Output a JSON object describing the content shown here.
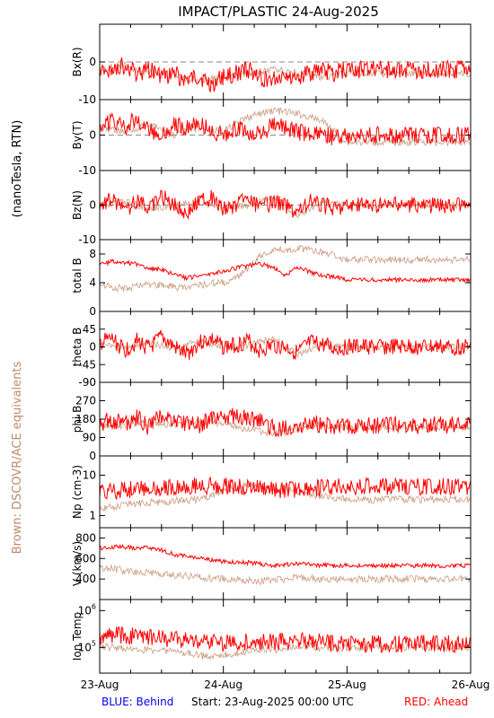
{
  "title": "IMPACT/PLASTIC   24-Aug-2025",
  "left_label_top": "(nanoTesla, RTN)",
  "left_label_bottom": "Brown: DSCOVR/ACE equivalents",
  "footer": {
    "behind": "BLUE: Behind",
    "start": "Start: 23-Aug-2025 00:00 UTC",
    "ahead": "RED: Ahead"
  },
  "colors": {
    "ahead": "#ff0000",
    "ace": "#c08a6a",
    "behind": "#0000ff",
    "axis": "#000000"
  },
  "chart_data": [
    {
      "type": "scatter",
      "panel": "Bx",
      "ylabel": "Bx(R)",
      "ylim": [
        -10,
        10
      ],
      "yticks": [
        {
          "v": 0,
          "label": "0"
        },
        {
          "v": -10,
          "label": "-10"
        }
      ],
      "zero_line": true,
      "series": [
        {
          "name": "Ahead",
          "x": [
            0,
            0.1,
            0.2,
            0.3,
            0.4,
            0.5,
            0.6,
            0.7,
            0.8,
            0.9,
            1,
            1.1,
            1.2,
            1.3,
            1.4,
            1.5,
            1.6,
            1.7,
            1.8,
            1.9,
            2
          ],
          "values": [
            -3,
            -2,
            -1,
            -3,
            -2,
            -4,
            -3,
            -5,
            -4,
            -6,
            -4,
            -3,
            -2,
            -4,
            -5,
            -3,
            -4,
            -3,
            -2,
            -3,
            -2
          ]
        },
        {
          "name": "ACE",
          "x": [
            0,
            0.2,
            0.4,
            0.6,
            0.8,
            1,
            1.2,
            1.4,
            1.6,
            1.8,
            2
          ],
          "values": [
            -2,
            -1,
            -3,
            -4,
            -5,
            -4,
            -3,
            -2,
            -3,
            -4,
            -3
          ]
        }
      ]
    },
    {
      "type": "scatter",
      "panel": "By",
      "ylabel": "By(T)",
      "ylim": [
        -10,
        10
      ],
      "yticks": [
        {
          "v": 0,
          "label": "0"
        },
        {
          "v": -10,
          "label": "-10"
        }
      ],
      "zero_line": true,
      "series": [
        {
          "name": "Ahead",
          "x": [
            0,
            0.1,
            0.2,
            0.3,
            0.4,
            0.5,
            0.6,
            0.7,
            0.8,
            0.9,
            1,
            1.1,
            1.2,
            1.3,
            1.4,
            1.5,
            1.6,
            1.7,
            1.8,
            1.9,
            2
          ],
          "values": [
            3,
            4,
            2,
            5,
            1,
            0,
            3,
            2,
            4,
            1,
            0,
            2,
            1,
            0,
            3,
            2,
            1,
            0,
            1,
            -1,
            0
          ]
        },
        {
          "name": "ACE",
          "x": [
            0,
            0.2,
            0.4,
            0.6,
            0.8,
            1,
            1.2,
            1.4,
            1.6,
            1.8,
            2
          ],
          "values": [
            2,
            1,
            3,
            0,
            2,
            1,
            5,
            7,
            6,
            4,
            -2
          ]
        }
      ]
    },
    {
      "type": "scatter",
      "panel": "Bz",
      "ylabel": "Bz(N)",
      "ylim": [
        -10,
        10
      ],
      "yticks": [
        {
          "v": 0,
          "label": "0"
        },
        {
          "v": -10,
          "label": "-10"
        }
      ],
      "zero_line": true,
      "series": [
        {
          "name": "Ahead",
          "x": [
            0,
            0.1,
            0.2,
            0.3,
            0.4,
            0.5,
            0.6,
            0.7,
            0.8,
            0.9,
            1,
            1.1,
            1.2,
            1.3,
            1.4,
            1.5,
            1.6,
            1.7,
            1.8,
            1.9,
            2
          ],
          "values": [
            0,
            2,
            -2,
            1,
            -1,
            3,
            0,
            -2,
            1,
            2,
            -1,
            0,
            2,
            -1,
            1,
            0,
            -2,
            1,
            0,
            -1,
            0
          ]
        },
        {
          "name": "ACE",
          "x": [
            0,
            0.2,
            0.4,
            0.6,
            0.8,
            1,
            1.2,
            1.4,
            1.6,
            1.8,
            2
          ],
          "values": [
            0,
            1,
            -1,
            0,
            1,
            -1,
            0,
            2,
            -3,
            1,
            0
          ]
        }
      ]
    },
    {
      "type": "line",
      "panel": "total B",
      "ylabel": "total B",
      "ylim": [
        0,
        10
      ],
      "yticks": [
        {
          "v": 8,
          "label": "8"
        },
        {
          "v": 4,
          "label": "4"
        },
        {
          "v": 0,
          "label": "0"
        }
      ],
      "series": [
        {
          "name": "Ahead",
          "x": [
            0,
            0.1,
            0.2,
            0.3,
            0.4,
            0.5,
            0.6,
            0.7,
            0.8,
            0.9,
            1,
            1.1,
            1.2,
            1.3,
            1.4,
            1.5,
            1.6,
            1.7,
            1.8,
            1.9,
            2
          ],
          "values": [
            6.5,
            7,
            6.8,
            6.6,
            6,
            5.8,
            5.2,
            4.6,
            5,
            5.3,
            5.6,
            6,
            6.4,
            6.6,
            6.2,
            5,
            6.2,
            5.5,
            5,
            4.8,
            4.4
          ]
        },
        {
          "name": "ACE",
          "x": [
            0,
            0.1,
            0.2,
            0.3,
            0.4,
            0.5,
            0.6,
            0.7,
            0.8,
            0.9,
            1,
            1.1,
            1.2,
            1.3,
            1.4,
            1.5,
            1.6,
            1.7,
            1.8,
            1.9,
            2
          ],
          "values": [
            3.8,
            3.4,
            3.2,
            3.5,
            3.8,
            3.6,
            3.4,
            3.3,
            3.6,
            3.9,
            4,
            4.5,
            6,
            7.8,
            8.6,
            8.6,
            8.8,
            8.6,
            8.2,
            7.8,
            7.2
          ]
        }
      ]
    },
    {
      "type": "scatter",
      "panel": "theta B",
      "ylabel": "theta B",
      "ylim": [
        -90,
        90
      ],
      "yticks": [
        {
          "v": 45,
          "label": "45"
        },
        {
          "v": 0,
          "label": "0"
        },
        {
          "v": -45,
          "label": "-45"
        },
        {
          "v": -90,
          "label": "-90"
        }
      ],
      "series": [
        {
          "name": "Ahead",
          "x": [
            0,
            0.1,
            0.2,
            0.3,
            0.4,
            0.5,
            0.6,
            0.7,
            0.8,
            0.9,
            1,
            1.1,
            1.2,
            1.3,
            1.4,
            1.5,
            1.6,
            1.7,
            1.8,
            1.9,
            2
          ],
          "values": [
            10,
            20,
            -10,
            15,
            -5,
            25,
            0,
            -20,
            10,
            20,
            0,
            5,
            15,
            -10,
            5,
            0,
            -15,
            10,
            5,
            -5,
            0
          ]
        },
        {
          "name": "ACE",
          "x": [
            0,
            0.2,
            0.4,
            0.6,
            0.8,
            1,
            1.2,
            1.4,
            1.6,
            1.8,
            2
          ],
          "values": [
            5,
            0,
            10,
            -5,
            15,
            0,
            5,
            20,
            -20,
            10,
            0
          ]
        }
      ]
    },
    {
      "type": "scatter",
      "panel": "phi B",
      "ylabel": "phi B",
      "ylim": [
        0,
        360
      ],
      "yticks": [
        {
          "v": 270,
          "label": "270"
        },
        {
          "v": 180,
          "label": "180"
        },
        {
          "v": 90,
          "label": "90"
        },
        {
          "v": 0,
          "label": "0"
        }
      ],
      "series": [
        {
          "name": "Ahead",
          "x": [
            0,
            0.1,
            0.2,
            0.3,
            0.4,
            0.5,
            0.6,
            0.7,
            0.8,
            0.9,
            1,
            1.1,
            1.2,
            1.3,
            1.4,
            1.5,
            1.6,
            1.7,
            1.8,
            1.9,
            2
          ],
          "values": [
            150,
            180,
            160,
            190,
            140,
            200,
            170,
            160,
            150,
            180,
            190,
            200,
            180,
            170,
            140,
            130,
            150,
            160,
            150,
            140,
            150
          ]
        },
        {
          "name": "ACE",
          "x": [
            0,
            0.2,
            0.4,
            0.6,
            0.8,
            1,
            1.2,
            1.4,
            1.6,
            1.8,
            2
          ],
          "values": [
            140,
            150,
            160,
            150,
            170,
            160,
            130,
            110,
            130,
            150,
            140
          ]
        }
      ]
    },
    {
      "type": "scatter",
      "panel": "Np",
      "ylabel": "Np (cm-3)",
      "yscale": "log",
      "ylim": [
        0.5,
        30
      ],
      "yticks": [
        {
          "v": 10,
          "label": "10"
        },
        {
          "v": 1,
          "label": "1"
        }
      ],
      "series": [
        {
          "name": "Ahead",
          "x": [
            0,
            0.1,
            0.2,
            0.3,
            0.4,
            0.5,
            0.6,
            0.7,
            0.8,
            0.9,
            1,
            1.1,
            1.2,
            1.3,
            1.4,
            1.5,
            1.6,
            1.7,
            1.8,
            1.9,
            2
          ],
          "values": [
            3.8,
            4,
            4.2,
            4.5,
            4.8,
            5,
            5,
            5.2,
            5.4,
            5.6,
            5.4,
            5,
            4.8,
            4.6,
            4.4,
            4.2,
            4.4,
            4.6,
            4.8,
            5,
            5.2
          ]
        },
        {
          "name": "ACE",
          "x": [
            0,
            0.1,
            0.2,
            0.3,
            0.4,
            0.5,
            0.6,
            0.7,
            0.8,
            0.9,
            1,
            1.1,
            1.2,
            1.3,
            1.4,
            1.5,
            1.6,
            1.7,
            1.8,
            1.9,
            2
          ],
          "values": [
            1.5,
            1.6,
            1.8,
            2,
            2.1,
            2.2,
            2.3,
            2.4,
            2.6,
            3,
            4,
            5,
            6,
            5,
            4,
            4.5,
            4,
            3.5,
            3,
            2.8,
            2.5
          ]
        }
      ]
    },
    {
      "type": "line",
      "panel": "V",
      "ylabel": "V (km/s)",
      "ylim": [
        200,
        900
      ],
      "yticks": [
        {
          "v": 800,
          "label": "800"
        },
        {
          "v": 600,
          "label": "600"
        },
        {
          "v": 400,
          "label": "400"
        }
      ],
      "series": [
        {
          "name": "Ahead",
          "x": [
            0,
            0.1,
            0.2,
            0.3,
            0.4,
            0.5,
            0.6,
            0.7,
            0.8,
            0.9,
            1,
            1.1,
            1.2,
            1.3,
            1.4,
            1.5,
            1.6,
            1.7,
            1.8,
            1.9,
            2
          ],
          "values": [
            700,
            710,
            715,
            700,
            705,
            680,
            640,
            620,
            600,
            585,
            570,
            565,
            560,
            545,
            530,
            540,
            550,
            540,
            535,
            530,
            530
          ]
        },
        {
          "name": "ACE",
          "x": [
            0,
            0.1,
            0.2,
            0.3,
            0.4,
            0.5,
            0.6,
            0.7,
            0.8,
            0.9,
            1,
            1.1,
            1.2,
            1.3,
            1.4,
            1.5,
            1.6,
            1.7,
            1.8,
            1.9,
            2
          ],
          "values": [
            510,
            500,
            480,
            470,
            460,
            450,
            440,
            430,
            420,
            410,
            400,
            395,
            390,
            380,
            395,
            400,
            420,
            410,
            400,
            395,
            400
          ]
        }
      ]
    },
    {
      "type": "scatter",
      "panel": "Ion Temp",
      "ylabel": "Ion Temp",
      "yscale": "log",
      "ylim": [
        20000,
        2000000
      ],
      "yticks": [
        {
          "v": 1000000,
          "label": "10^6"
        },
        {
          "v": 100000,
          "label": "10^5"
        }
      ],
      "series": [
        {
          "name": "Ahead",
          "x": [
            0,
            0.1,
            0.2,
            0.3,
            0.4,
            0.5,
            0.6,
            0.7,
            0.8,
            0.9,
            1,
            1.1,
            1.2,
            1.3,
            1.4,
            1.5,
            1.6,
            1.7,
            1.8,
            1.9,
            2
          ],
          "values": [
            200000,
            220000,
            210000,
            200000,
            190000,
            180000,
            170000,
            160000,
            150000,
            140000,
            130000,
            140000,
            145000,
            150000,
            140000,
            145000,
            150000,
            140000,
            135000,
            130000,
            125000
          ]
        },
        {
          "name": "ACE",
          "x": [
            0,
            0.1,
            0.2,
            0.3,
            0.4,
            0.5,
            0.6,
            0.7,
            0.8,
            0.9,
            1,
            1.1,
            1.2,
            1.3,
            1.4,
            1.5,
            1.6,
            1.7,
            1.8,
            1.9,
            2
          ],
          "values": [
            110000,
            100000,
            95000,
            90000,
            85000,
            80000,
            75000,
            70000,
            60000,
            55000,
            60000,
            65000,
            80000,
            90000,
            85000,
            100000,
            110000,
            105000,
            100000,
            95000,
            100000
          ]
        }
      ]
    }
  ],
  "x_axis": {
    "ticks": [
      {
        "v": 0,
        "label": "23-Aug"
      },
      {
        "v": 1,
        "label": "24-Aug"
      },
      {
        "v": 2,
        "label": "25-Aug"
      },
      {
        "v": 3,
        "label": "26-Aug"
      }
    ],
    "minor_per_day": 4
  }
}
